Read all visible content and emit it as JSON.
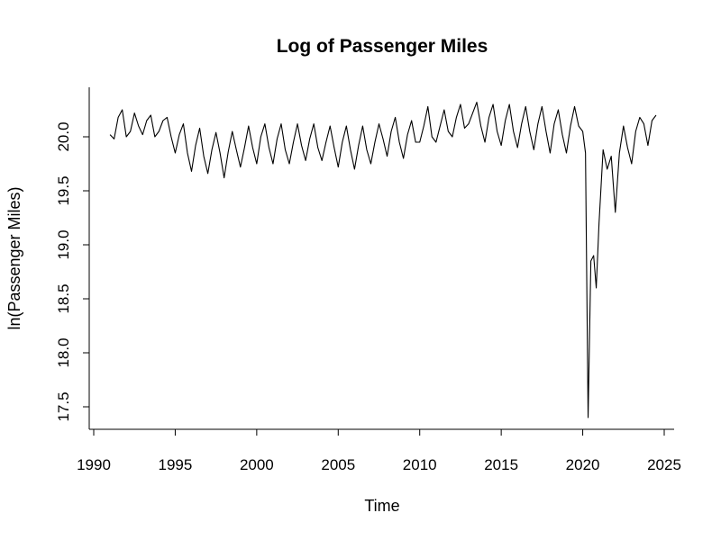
{
  "chart_data": {
    "type": "line",
    "title": "Log of Passenger Miles",
    "xlabel": "Time",
    "ylabel": "ln(Passenger Miles)",
    "xlim": [
      1990,
      2025
    ],
    "ylim": [
      17.4,
      20.35
    ],
    "grid": false,
    "x_ticks": [
      {
        "value": 1990,
        "label": "1990"
      },
      {
        "value": 1995,
        "label": "1995"
      },
      {
        "value": 2000,
        "label": "2000"
      },
      {
        "value": 2005,
        "label": "2005"
      },
      {
        "value": 2010,
        "label": "2010"
      },
      {
        "value": 2015,
        "label": "2015"
      },
      {
        "value": 2020,
        "label": "2020"
      },
      {
        "value": 2025,
        "label": "2025"
      }
    ],
    "y_ticks": [
      {
        "value": 17.5,
        "label": "17.5"
      },
      {
        "value": 18.0,
        "label": "18.0"
      },
      {
        "value": 18.5,
        "label": "18.5"
      },
      {
        "value": 19.0,
        "label": "19.0"
      },
      {
        "value": 19.5,
        "label": "19.5"
      },
      {
        "value": 20.0,
        "label": "20.0"
      }
    ],
    "series": [
      {
        "x": [
          1991.0,
          1991.25,
          1991.5,
          1991.75,
          1992.0,
          1992.25,
          1992.5,
          1992.75,
          1993.0,
          1993.25,
          1993.5,
          1993.75,
          1994.0,
          1994.25,
          1994.5,
          1994.75,
          1995.0,
          1995.25,
          1995.5,
          1995.75,
          1996.0,
          1996.25,
          1996.5,
          1996.75,
          1997.0,
          1997.25,
          1997.5,
          1997.75,
          1998.0,
          1998.25,
          1998.5,
          1998.75,
          1999.0,
          1999.25,
          1999.5,
          1999.75,
          2000.0,
          2000.25,
          2000.5,
          2000.75,
          2001.0,
          2001.25,
          2001.5,
          2001.75,
          2002.0,
          2002.25,
          2002.5,
          2002.75,
          2003.0,
          2003.25,
          2003.5,
          2003.75,
          2004.0,
          2004.25,
          2004.5,
          2004.75,
          2005.0,
          2005.25,
          2005.5,
          2005.75,
          2006.0,
          2006.25,
          2006.5,
          2006.75,
          2007.0,
          2007.25,
          2007.5,
          2007.75,
          2008.0,
          2008.25,
          2008.5,
          2008.75,
          2009.0,
          2009.25,
          2009.5,
          2009.75,
          2010.0,
          2010.25,
          2010.5,
          2010.75,
          2011.0,
          2011.25,
          2011.5,
          2011.75,
          2012.0,
          2012.25,
          2012.5,
          2012.75,
          2013.0,
          2013.25,
          2013.5,
          2013.75,
          2014.0,
          2014.25,
          2014.5,
          2014.75,
          2015.0,
          2015.25,
          2015.5,
          2015.75,
          2016.0,
          2016.25,
          2016.5,
          2016.75,
          2017.0,
          2017.25,
          2017.5,
          2017.75,
          2018.0,
          2018.25,
          2018.5,
          2018.75,
          2019.0,
          2019.25,
          2019.5,
          2019.75,
          2020.0,
          2020.17,
          2020.33,
          2020.5,
          2020.67,
          2020.83,
          2021.0,
          2021.25,
          2021.5,
          2021.75,
          2022.0,
          2022.25,
          2022.5,
          2022.75,
          2023.0,
          2023.25,
          2023.5,
          2023.75,
          2024.0,
          2024.25,
          2024.5
        ],
        "values": [
          20.02,
          19.98,
          20.18,
          20.25,
          20.0,
          20.05,
          20.22,
          20.1,
          20.02,
          20.15,
          20.2,
          20.0,
          20.05,
          20.15,
          20.18,
          20.0,
          19.85,
          20.02,
          20.12,
          19.85,
          19.68,
          19.92,
          20.08,
          19.82,
          19.66,
          19.88,
          20.04,
          19.85,
          19.62,
          19.86,
          20.05,
          19.88,
          19.72,
          19.9,
          20.1,
          19.9,
          19.75,
          20.0,
          20.12,
          19.9,
          19.75,
          19.98,
          20.12,
          19.88,
          19.75,
          19.95,
          20.12,
          19.92,
          19.78,
          19.98,
          20.12,
          19.9,
          19.78,
          19.95,
          20.1,
          19.9,
          19.72,
          19.95,
          20.1,
          19.88,
          19.7,
          19.92,
          20.1,
          19.88,
          19.75,
          19.95,
          20.12,
          19.98,
          19.82,
          20.05,
          20.18,
          19.95,
          19.8,
          20.02,
          20.15,
          19.95,
          19.95,
          20.1,
          20.28,
          20.0,
          19.95,
          20.1,
          20.25,
          20.05,
          20.0,
          20.18,
          20.3,
          20.08,
          20.12,
          20.22,
          20.32,
          20.1,
          19.95,
          20.18,
          20.3,
          20.05,
          19.92,
          20.15,
          20.3,
          20.05,
          19.9,
          20.12,
          20.28,
          20.05,
          19.88,
          20.12,
          20.28,
          20.05,
          19.85,
          20.12,
          20.25,
          20.02,
          19.85,
          20.1,
          20.28,
          20.1,
          20.05,
          19.85,
          17.4,
          18.85,
          18.9,
          18.6,
          19.2,
          19.88,
          19.7,
          19.82,
          19.3,
          19.85,
          20.1,
          19.9,
          19.75,
          20.05,
          20.18,
          20.12,
          19.92,
          20.15,
          20.2
        ]
      }
    ]
  }
}
